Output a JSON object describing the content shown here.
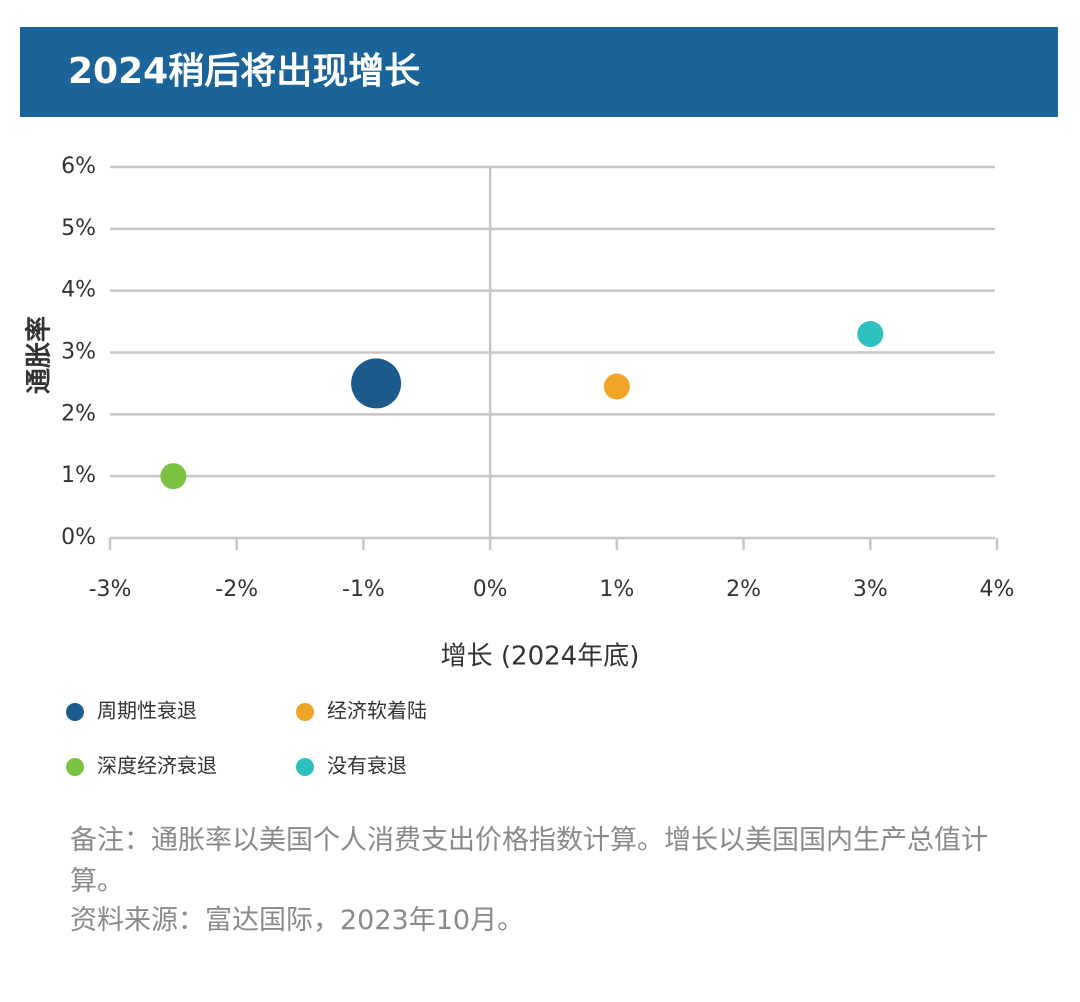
{
  "chart_data": {
    "type": "scatter",
    "title": "2024稍后将出现增长",
    "x_label": "增长 (2024年底)",
    "y_label": "通胀率",
    "series": [
      {
        "name": "周期性衰退",
        "color": "#1b5a8a",
        "x": [
          -0.9
        ],
        "values": [
          2.5
        ],
        "sizes": [
          3.7
        ]
      },
      {
        "name": "经济软着陆",
        "color": "#f0a428",
        "x": [
          1.0
        ],
        "values": [
          2.45
        ],
        "sizes": [
          1
        ]
      },
      {
        "name": "深度经济衰退",
        "color": "#7cc242",
        "x": [
          -2.5
        ],
        "values": [
          1.0
        ],
        "sizes": [
          1
        ]
      },
      {
        "name": "没有衰退",
        "color": "#2ebfbf",
        "x": [
          3.0
        ],
        "values": [
          3.3
        ],
        "sizes": [
          1
        ]
      }
    ],
    "xlim": [
      -3,
      4
    ],
    "xticks": [
      {
        "value": -3,
        "label": "-3%"
      },
      {
        "value": -2,
        "label": "-2%"
      },
      {
        "value": -1,
        "label": "-1%"
      },
      {
        "value": 0,
        "label": "0%"
      },
      {
        "value": 1,
        "label": "1%"
      },
      {
        "value": 2,
        "label": "2%"
      },
      {
        "value": 3,
        "label": "3%"
      },
      {
        "value": 4,
        "label": "4%"
      }
    ],
    "ylim": [
      0,
      6
    ],
    "yticks": [
      {
        "value": 0,
        "label": "0%"
      },
      {
        "value": 1,
        "label": "1%"
      },
      {
        "value": 2,
        "label": "2%"
      },
      {
        "value": 3,
        "label": "3%"
      },
      {
        "value": 4,
        "label": "4%"
      },
      {
        "value": 5,
        "label": "5%"
      },
      {
        "value": 6,
        "label": "6%"
      }
    ],
    "grid": true,
    "note": "备注：通胀率以美国个人消费支出价格指数计算。增长以美国国内生产总值计算。",
    "source": "资料来源：富达国际，2023年10月。"
  }
}
